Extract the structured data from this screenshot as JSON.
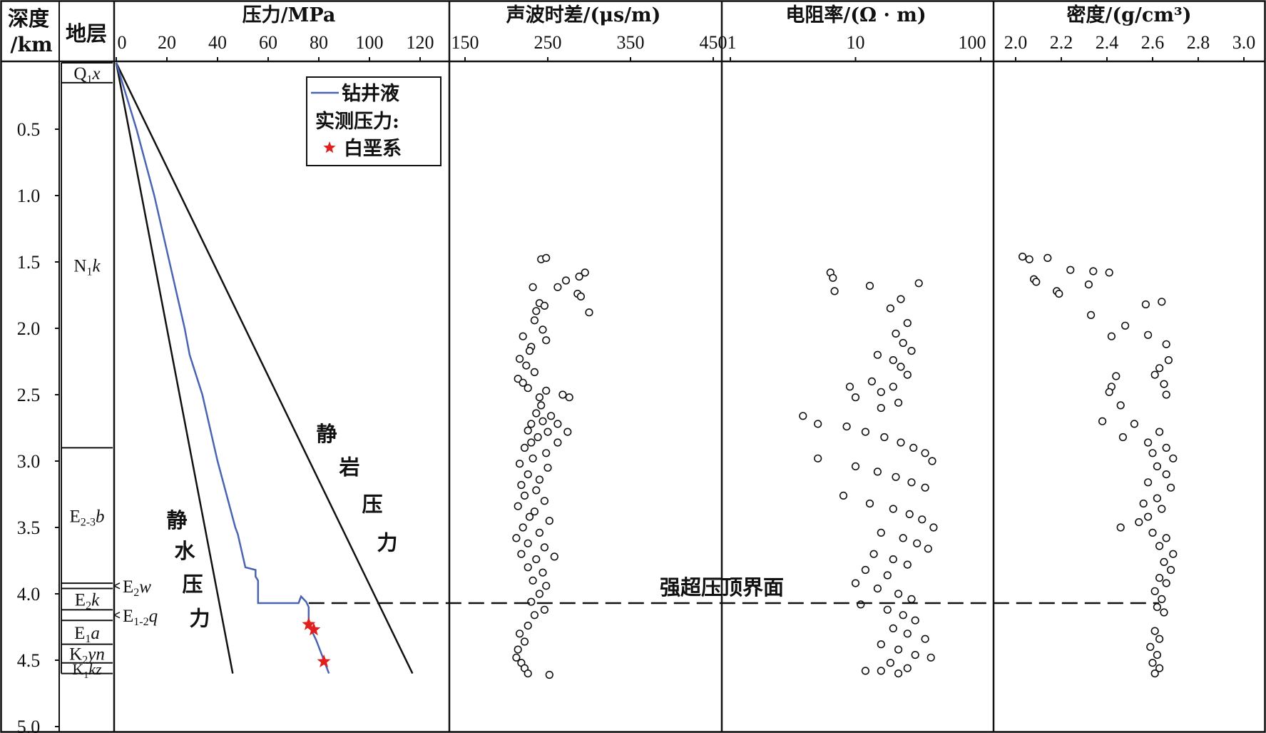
{
  "chart_data": {
    "type": "multi-track well log",
    "depth_axis": {
      "label_line1": "深度",
      "label_line2": "/km",
      "range": [
        0,
        5.0
      ],
      "ticks": [
        {
          "v": 0.5,
          "label": "0.5"
        },
        {
          "v": 1.0,
          "label": "1.0"
        },
        {
          "v": 1.5,
          "label": "1.5"
        },
        {
          "v": 2.0,
          "label": "2.0"
        },
        {
          "v": 2.5,
          "label": "2.5"
        },
        {
          "v": 3.0,
          "label": "3.0"
        },
        {
          "v": 3.5,
          "label": "3.5"
        },
        {
          "v": 4.0,
          "label": "4.0"
        },
        {
          "v": 4.5,
          "label": "4.5"
        },
        {
          "v": 5.0,
          "label": "5.0"
        }
      ]
    },
    "strata": {
      "title": "地层",
      "boundaries": [
        0.0,
        0.15,
        2.9,
        3.92,
        3.96,
        4.12,
        4.2,
        4.38,
        4.52,
        4.6
      ],
      "layers": [
        {
          "main": "Q",
          "sub": "1",
          "tail": "x",
          "top": 0.0,
          "bottom": 0.15
        },
        {
          "main": "N",
          "sub": "1",
          "tail": "k",
          "top": 0.15,
          "bottom": 2.9
        },
        {
          "main": "E",
          "sub": "2-3",
          "tail": "b",
          "top": 2.9,
          "bottom": 3.92
        },
        {
          "main": "E",
          "sub": "2",
          "tail": "w",
          "top": 3.92,
          "bottom": 3.96,
          "callout": true
        },
        {
          "main": "E",
          "sub": "2",
          "tail": "k",
          "top": 3.96,
          "bottom": 4.12
        },
        {
          "main": "E",
          "sub": "1-2",
          "tail": "q",
          "top": 4.12,
          "bottom": 4.2,
          "callout": true
        },
        {
          "main": "E",
          "sub": "1",
          "tail": "a",
          "top": 4.2,
          "bottom": 4.38
        },
        {
          "main": "K",
          "sub": "2",
          "tail": "yn",
          "top": 4.38,
          "bottom": 4.52
        },
        {
          "main": "K",
          "sub": "1",
          "tail": "kz",
          "top": 4.52,
          "bottom": 4.6
        }
      ]
    },
    "pressure_track": {
      "title": "压力/MPa",
      "xlim": [
        0,
        130
      ],
      "ticks": [
        0,
        20,
        40,
        60,
        80,
        100,
        120
      ],
      "hydrostatic_line": {
        "label": [
          "静",
          "水",
          "压",
          "力"
        ],
        "points": [
          [
            0,
            0.0
          ],
          [
            46,
            4.6
          ]
        ]
      },
      "lithostatic_line": {
        "label": [
          "静",
          "岩",
          "压",
          "力"
        ],
        "points": [
          [
            0,
            0.0
          ],
          [
            117,
            4.6
          ]
        ]
      },
      "drilling_fluid_series": {
        "name": "钻井液",
        "color": "#4a64b4",
        "points": [
          [
            0,
            0.0
          ],
          [
            8,
            0.5
          ],
          [
            15,
            1.0
          ],
          [
            21,
            1.5
          ],
          [
            27,
            2.0
          ],
          [
            29,
            2.2
          ],
          [
            34,
            2.5
          ],
          [
            40,
            3.0
          ],
          [
            47,
            3.5
          ],
          [
            48,
            3.55
          ],
          [
            51,
            3.8
          ],
          [
            55,
            3.82
          ],
          [
            55,
            3.87
          ],
          [
            56,
            3.9
          ],
          [
            56,
            4.07
          ],
          [
            72,
            4.07
          ],
          [
            73,
            4.02
          ],
          [
            75,
            4.06
          ],
          [
            76,
            4.1
          ],
          [
            76,
            4.22
          ],
          [
            77,
            4.27
          ],
          [
            79,
            4.35
          ],
          [
            84,
            4.6
          ]
        ]
      },
      "measured_pressure": {
        "legend_title": "实测压力:",
        "name": "白垩系",
        "color": "#e0201e",
        "points": [
          [
            76,
            4.23
          ],
          [
            78,
            4.27
          ],
          [
            82,
            4.51
          ]
        ]
      }
    },
    "sonic_track": {
      "title": "声波时差/(μs/m)",
      "xlim": [
        150,
        450
      ],
      "ticks": [
        150,
        250,
        350,
        450
      ],
      "points": [
        [
          242,
          1.48
        ],
        [
          248,
          1.47
        ],
        [
          295,
          1.58
        ],
        [
          288,
          1.61
        ],
        [
          272,
          1.64
        ],
        [
          262,
          1.69
        ],
        [
          286,
          1.74
        ],
        [
          290,
          1.76
        ],
        [
          232,
          1.69
        ],
        [
          240,
          1.81
        ],
        [
          246,
          1.83
        ],
        [
          236,
          1.87
        ],
        [
          300,
          1.88
        ],
        [
          234,
          1.94
        ],
        [
          244,
          2.01
        ],
        [
          220,
          2.06
        ],
        [
          248,
          2.09
        ],
        [
          230,
          2.14
        ],
        [
          228,
          2.17
        ],
        [
          216,
          2.23
        ],
        [
          224,
          2.28
        ],
        [
          234,
          2.33
        ],
        [
          214,
          2.38
        ],
        [
          220,
          2.41
        ],
        [
          226,
          2.45
        ],
        [
          248,
          2.47
        ],
        [
          240,
          2.52
        ],
        [
          268,
          2.5
        ],
        [
          276,
          2.52
        ],
        [
          242,
          2.58
        ],
        [
          236,
          2.64
        ],
        [
          254,
          2.66
        ],
        [
          230,
          2.72
        ],
        [
          244,
          2.7
        ],
        [
          262,
          2.72
        ],
        [
          226,
          2.77
        ],
        [
          250,
          2.78
        ],
        [
          274,
          2.78
        ],
        [
          238,
          2.82
        ],
        [
          230,
          2.86
        ],
        [
          262,
          2.86
        ],
        [
          222,
          2.9
        ],
        [
          248,
          2.94
        ],
        [
          232,
          2.98
        ],
        [
          216,
          3.02
        ],
        [
          250,
          3.05
        ],
        [
          226,
          3.1
        ],
        [
          240,
          3.14
        ],
        [
          218,
          3.18
        ],
        [
          236,
          3.22
        ],
        [
          222,
          3.26
        ],
        [
          246,
          3.3
        ],
        [
          214,
          3.34
        ],
        [
          234,
          3.38
        ],
        [
          228,
          3.42
        ],
        [
          252,
          3.45
        ],
        [
          220,
          3.5
        ],
        [
          240,
          3.54
        ],
        [
          212,
          3.58
        ],
        [
          226,
          3.62
        ],
        [
          246,
          3.65
        ],
        [
          218,
          3.7
        ],
        [
          236,
          3.74
        ],
        [
          258,
          3.72
        ],
        [
          226,
          3.8
        ],
        [
          244,
          3.84
        ],
        [
          232,
          3.9
        ],
        [
          248,
          3.94
        ],
        [
          240,
          4.0
        ],
        [
          230,
          4.06
        ],
        [
          246,
          4.12
        ],
        [
          234,
          4.16
        ],
        [
          226,
          4.24
        ],
        [
          216,
          4.3
        ],
        [
          222,
          4.36
        ],
        [
          214,
          4.42
        ],
        [
          212,
          4.48
        ],
        [
          218,
          4.52
        ],
        [
          222,
          4.56
        ],
        [
          226,
          4.6
        ],
        [
          252,
          4.61
        ]
      ]
    },
    "resistivity_track": {
      "title": "电阻率/(Ω · m)",
      "scale": "log",
      "xlim": [
        1,
        100
      ],
      "ticks": [
        1,
        10,
        100
      ],
      "points": [
        [
          6.3,
          1.58
        ],
        [
          6.6,
          1.62
        ],
        [
          6.8,
          1.72
        ],
        [
          13,
          1.68
        ],
        [
          32,
          1.66
        ],
        [
          23,
          1.78
        ],
        [
          19,
          1.85
        ],
        [
          26,
          1.96
        ],
        [
          21,
          2.04
        ],
        [
          24,
          2.11
        ],
        [
          28,
          2.17
        ],
        [
          15,
          2.2
        ],
        [
          20,
          2.24
        ],
        [
          23,
          2.29
        ],
        [
          26,
          2.35
        ],
        [
          13.5,
          2.4
        ],
        [
          20,
          2.44
        ],
        [
          16,
          2.48
        ],
        [
          9,
          2.44
        ],
        [
          10,
          2.52
        ],
        [
          22,
          2.56
        ],
        [
          16,
          2.6
        ],
        [
          3.8,
          2.66
        ],
        [
          5,
          2.72
        ],
        [
          8.5,
          2.74
        ],
        [
          12,
          2.78
        ],
        [
          17,
          2.82
        ],
        [
          23,
          2.86
        ],
        [
          29,
          2.9
        ],
        [
          36,
          2.94
        ],
        [
          41,
          3.0
        ],
        [
          5,
          2.98
        ],
        [
          10,
          3.04
        ],
        [
          15,
          3.08
        ],
        [
          21,
          3.12
        ],
        [
          28,
          3.16
        ],
        [
          36,
          3.2
        ],
        [
          8,
          3.26
        ],
        [
          13,
          3.32
        ],
        [
          20,
          3.36
        ],
        [
          27,
          3.4
        ],
        [
          34,
          3.44
        ],
        [
          42,
          3.5
        ],
        [
          16,
          3.54
        ],
        [
          24,
          3.58
        ],
        [
          31,
          3.62
        ],
        [
          38,
          3.66
        ],
        [
          14,
          3.7
        ],
        [
          20,
          3.74
        ],
        [
          26,
          3.78
        ],
        [
          12,
          3.82
        ],
        [
          18,
          3.86
        ],
        [
          10,
          3.92
        ],
        [
          15,
          3.96
        ],
        [
          22,
          4.0
        ],
        [
          28,
          4.04
        ],
        [
          11,
          4.08
        ],
        [
          18,
          4.12
        ],
        [
          24,
          4.16
        ],
        [
          30,
          4.2
        ],
        [
          20,
          4.26
        ],
        [
          26,
          4.3
        ],
        [
          36,
          4.34
        ],
        [
          16,
          4.38
        ],
        [
          22,
          4.42
        ],
        [
          30,
          4.46
        ],
        [
          40,
          4.48
        ],
        [
          19,
          4.52
        ],
        [
          26,
          4.56
        ],
        [
          16,
          4.58
        ],
        [
          22,
          4.6
        ],
        [
          12,
          4.58
        ]
      ]
    },
    "density_track": {
      "title": "密度/(g/cm³)",
      "xlim": [
        2.0,
        3.0
      ],
      "ticks": [
        {
          "v": 2.0,
          "label": "2.0"
        },
        {
          "v": 2.2,
          "label": "2.2"
        },
        {
          "v": 2.4,
          "label": "2.4"
        },
        {
          "v": 2.6,
          "label": "2.6"
        },
        {
          "v": 2.8,
          "label": "2.8"
        },
        {
          "v": 3.0,
          "label": "3.0"
        }
      ],
      "points": [
        [
          2.03,
          1.46
        ],
        [
          2.06,
          1.48
        ],
        [
          2.14,
          1.47
        ],
        [
          2.24,
          1.56
        ],
        [
          2.34,
          1.57
        ],
        [
          2.41,
          1.58
        ],
        [
          2.08,
          1.63
        ],
        [
          2.09,
          1.65
        ],
        [
          2.32,
          1.67
        ],
        [
          2.18,
          1.72
        ],
        [
          2.19,
          1.74
        ],
        [
          2.57,
          1.82
        ],
        [
          2.64,
          1.8
        ],
        [
          2.33,
          1.9
        ],
        [
          2.48,
          1.98
        ],
        [
          2.42,
          2.06
        ],
        [
          2.58,
          2.05
        ],
        [
          2.66,
          2.12
        ],
        [
          2.67,
          2.24
        ],
        [
          2.63,
          2.3
        ],
        [
          2.61,
          2.35
        ],
        [
          2.44,
          2.36
        ],
        [
          2.42,
          2.44
        ],
        [
          2.65,
          2.42
        ],
        [
          2.66,
          2.5
        ],
        [
          2.41,
          2.48
        ],
        [
          2.46,
          2.58
        ],
        [
          2.38,
          2.7
        ],
        [
          2.52,
          2.72
        ],
        [
          2.63,
          2.78
        ],
        [
          2.47,
          2.82
        ],
        [
          2.58,
          2.86
        ],
        [
          2.66,
          2.9
        ],
        [
          2.6,
          2.94
        ],
        [
          2.69,
          2.98
        ],
        [
          2.62,
          3.04
        ],
        [
          2.66,
          3.1
        ],
        [
          2.58,
          3.16
        ],
        [
          2.68,
          3.2
        ],
        [
          2.62,
          3.28
        ],
        [
          2.56,
          3.32
        ],
        [
          2.64,
          3.36
        ],
        [
          2.58,
          3.42
        ],
        [
          2.54,
          3.46
        ],
        [
          2.46,
          3.5
        ],
        [
          2.6,
          3.54
        ],
        [
          2.66,
          3.58
        ],
        [
          2.63,
          3.64
        ],
        [
          2.69,
          3.7
        ],
        [
          2.65,
          3.76
        ],
        [
          2.68,
          3.82
        ],
        [
          2.63,
          3.88
        ],
        [
          2.66,
          3.92
        ],
        [
          2.61,
          3.98
        ],
        [
          2.64,
          4.04
        ],
        [
          2.62,
          4.1
        ],
        [
          2.65,
          4.14
        ],
        [
          2.61,
          4.28
        ],
        [
          2.63,
          4.34
        ],
        [
          2.59,
          4.4
        ],
        [
          2.62,
          4.46
        ],
        [
          2.6,
          4.52
        ],
        [
          2.63,
          4.56
        ],
        [
          2.61,
          4.6
        ]
      ]
    },
    "annotation": {
      "text": "强超压顶界面",
      "depth": 4.07
    }
  }
}
